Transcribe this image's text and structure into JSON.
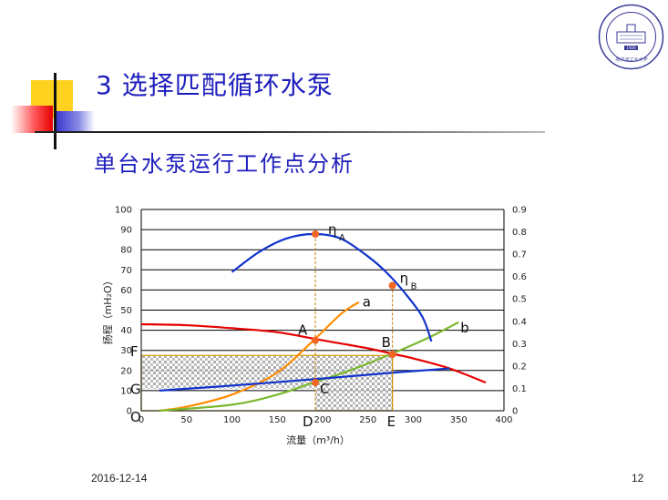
{
  "slide": {
    "title": "3  选择匹配循环水泵",
    "subtitle": "单台水泵运行工作点分析",
    "date": "2016-12-14",
    "page": "12",
    "logo": {
      "seal_text": "哈尔滨工业大学",
      "year": "1920"
    }
  },
  "colors": {
    "title": "#1d1dbd",
    "pump_curve": "#e60000",
    "system_a": "#ff8c00",
    "system_b": "#7ab82e",
    "efficiency": "#1133cc",
    "npsh": "#1133cc",
    "point": "#f26522"
  },
  "chart_data": {
    "type": "line",
    "xlabel": "流量（m³/h）",
    "ylabel": "扬程（mH₂O）",
    "xlim": [
      0,
      400
    ],
    "ylim": [
      0,
      100
    ],
    "y2lim": [
      0,
      0.9
    ],
    "x_ticks": [
      "0",
      "50",
      "100",
      "150",
      "200",
      "250",
      "300",
      "350",
      "400"
    ],
    "y_ticks": [
      "0",
      "10",
      "20",
      "30",
      "40",
      "50",
      "60",
      "70",
      "80",
      "90",
      "100"
    ],
    "y2_ticks": [
      "0",
      "0.1",
      "0.2",
      "0.3",
      "0.4",
      "0.5",
      "0.6",
      "0.7",
      "0.8",
      "0.9"
    ],
    "grid": "horizontal",
    "series": [
      {
        "key": "pump",
        "axis": "left",
        "points": [
          [
            0,
            43
          ],
          [
            50,
            42.5
          ],
          [
            100,
            41
          ],
          [
            150,
            39
          ],
          [
            200,
            35
          ],
          [
            250,
            31
          ],
          [
            280,
            28
          ],
          [
            300,
            26
          ],
          [
            340,
            21
          ],
          [
            380,
            14
          ]
        ]
      },
      {
        "key": "system_a",
        "name": "a",
        "axis": "left",
        "points": [
          [
            20,
            0
          ],
          [
            50,
            2
          ],
          [
            100,
            8
          ],
          [
            150,
            19
          ],
          [
            190,
            35
          ],
          [
            220,
            48
          ],
          [
            240,
            54
          ]
        ]
      },
      {
        "key": "system_b",
        "name": "b",
        "axis": "left",
        "points": [
          [
            20,
            0
          ],
          [
            100,
            3
          ],
          [
            150,
            8
          ],
          [
            190,
            14
          ],
          [
            230,
            20
          ],
          [
            280,
            29
          ],
          [
            320,
            37
          ],
          [
            350,
            44
          ]
        ]
      },
      {
        "key": "efficiency",
        "axis": "right",
        "points": [
          [
            100,
            0.62
          ],
          [
            130,
            0.71
          ],
          [
            160,
            0.77
          ],
          [
            190,
            0.79
          ],
          [
            220,
            0.77
          ],
          [
            250,
            0.69
          ],
          [
            270,
            0.62
          ],
          [
            290,
            0.53
          ],
          [
            310,
            0.42
          ],
          [
            320,
            0.31
          ]
        ]
      },
      {
        "key": "npsh",
        "axis": "left",
        "points": [
          [
            20,
            10
          ],
          [
            100,
            12.5
          ],
          [
            200,
            16
          ],
          [
            280,
            19
          ],
          [
            340,
            21
          ]
        ]
      }
    ],
    "points": [
      {
        "label": "A",
        "x": 192,
        "y": 35,
        "axis": "left"
      },
      {
        "label": "B",
        "x": 277,
        "y": 28,
        "axis": "left"
      },
      {
        "label": "C",
        "x": 192,
        "y": 14,
        "axis": "left"
      },
      {
        "label": "ηA",
        "x": 192,
        "y": 0.79,
        "axis": "right"
      },
      {
        "label": "ηB",
        "x": 277,
        "y": 0.56,
        "axis": "right"
      }
    ],
    "axis_letters": {
      "O": "O",
      "D": "D",
      "E": "E",
      "F": "F",
      "G": "G"
    },
    "reference_levels": {
      "F": 27.5,
      "G": 11,
      "D": 192,
      "E": 277
    },
    "labels": {
      "a": "a",
      "b": "b",
      "A": "A",
      "B": "B",
      "C": "C",
      "eta": "η",
      "subA": "A",
      "subB": "B"
    }
  }
}
